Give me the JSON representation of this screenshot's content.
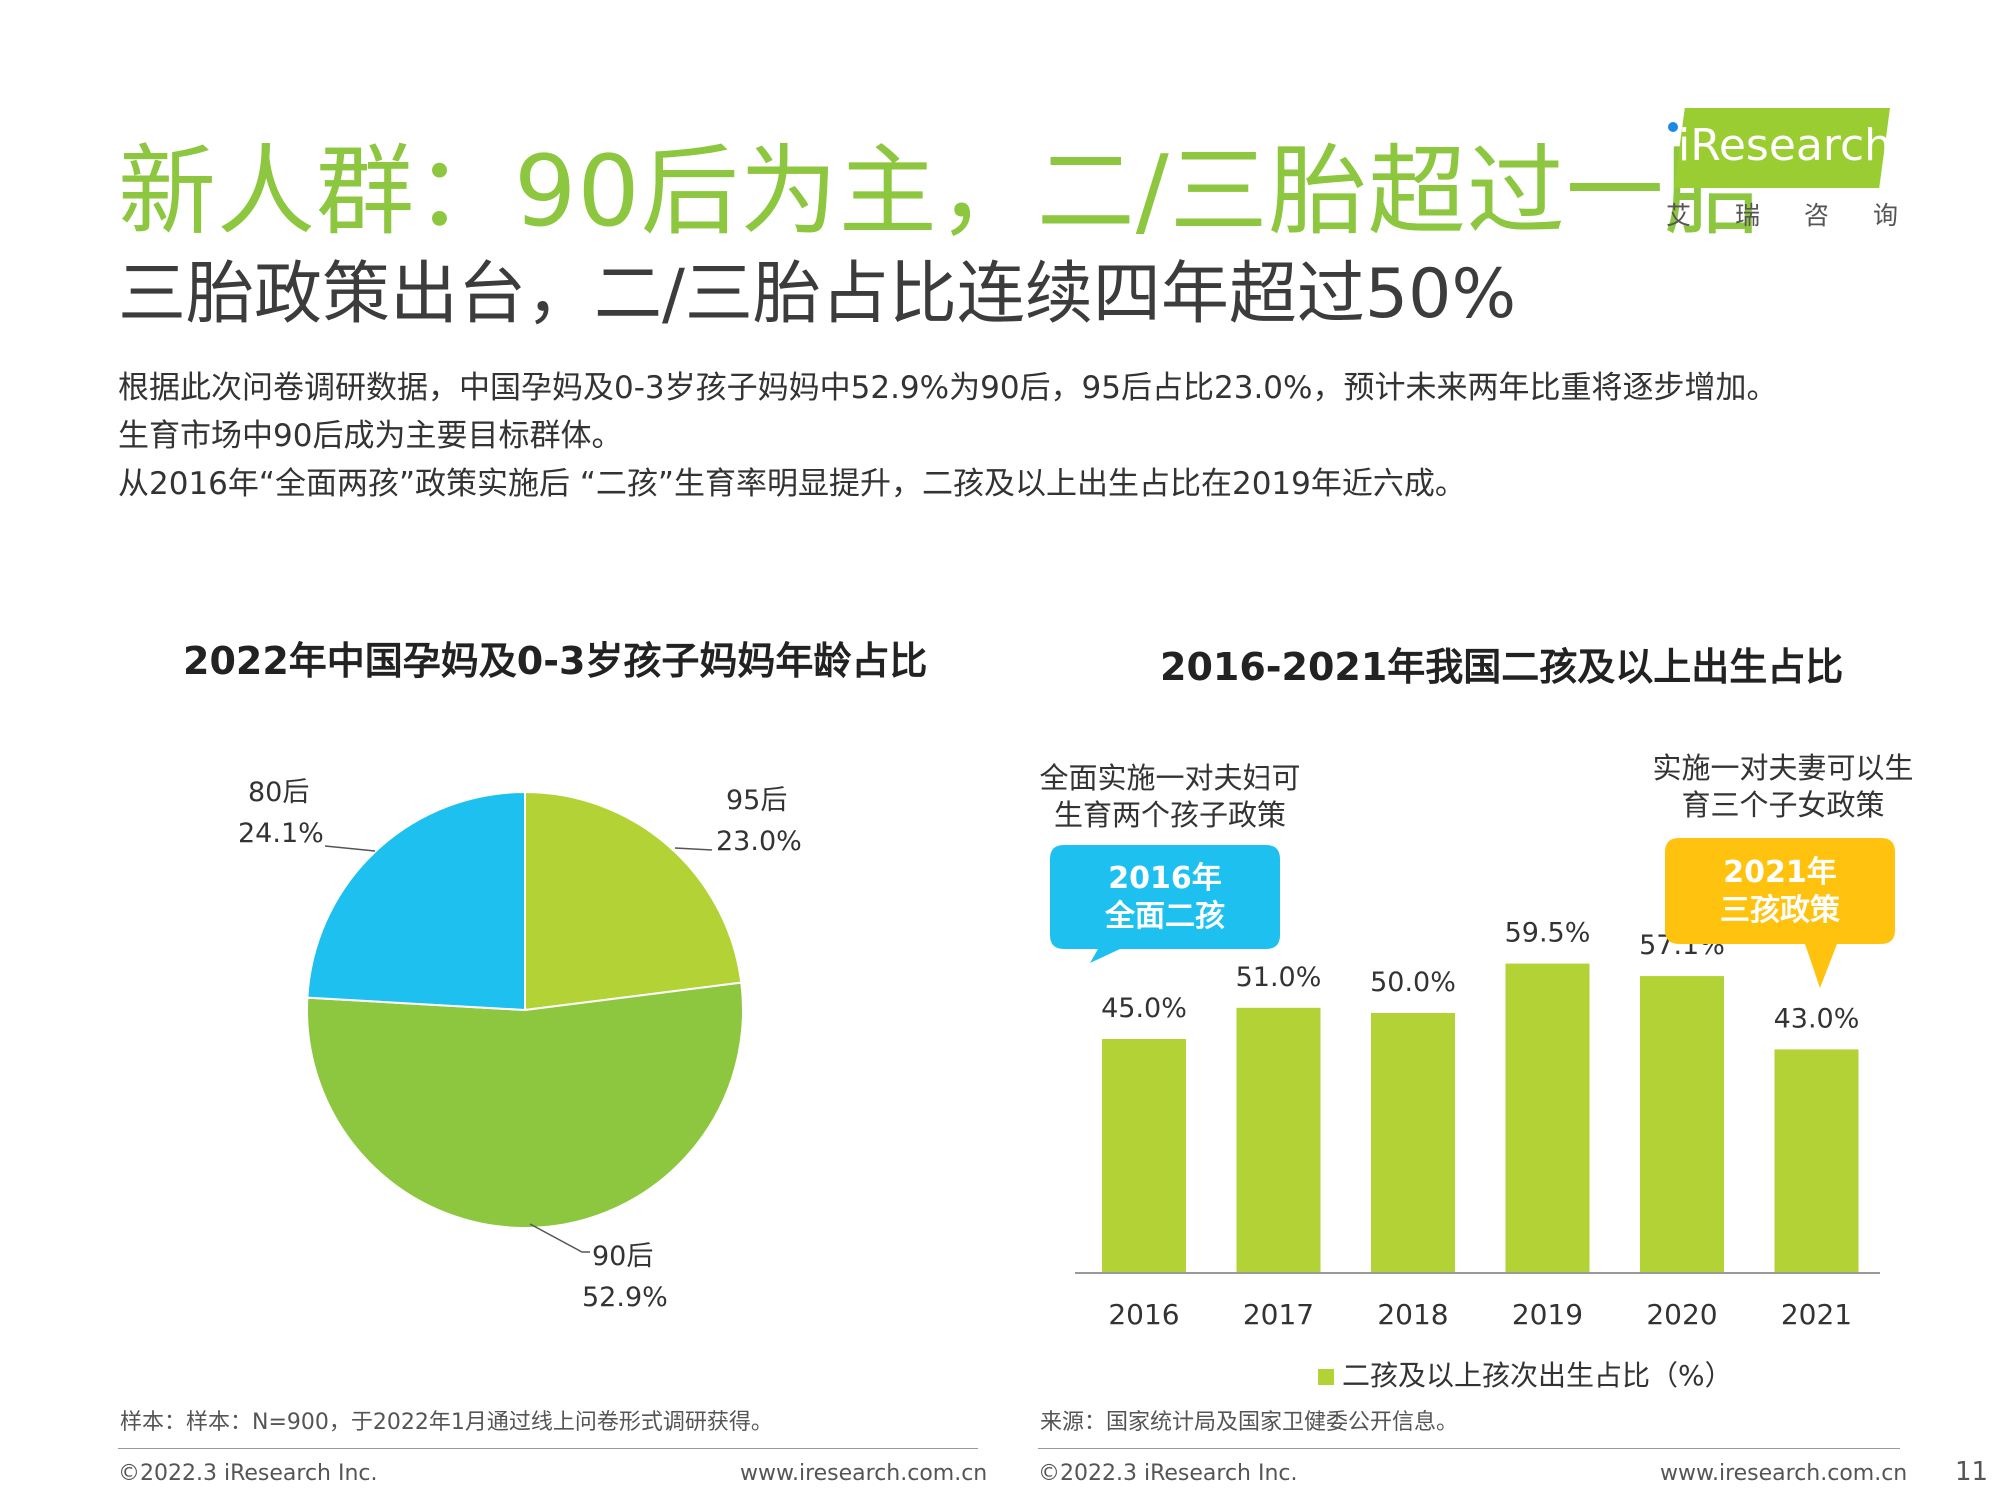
{
  "header": {
    "title": "新人群：90后为主，二/三胎超过一胎",
    "subtitle": "三胎政策出台，二/三胎占比连续四年超过50%",
    "paragraphs": [
      "根据此次问卷调研数据，中国孕妈及0-3岁孩子妈妈中52.9%为90后，95后占比23.0%，预计未来两年比重将逐步增加。",
      "生育市场中90后成为主要目标群体。",
      "从2016年“全面两孩”政策实施后 “二孩”生育率明显提升，二孩及以上出生占比在2019年近六成。"
    ]
  },
  "logo": {
    "brand": "iResearch",
    "cn": "艾瑞咨询"
  },
  "chart_data": [
    {
      "type": "pie",
      "title": "2022年中国孕妈及0-3岁孩子妈妈年龄占比",
      "slices": [
        {
          "label": "95后",
          "value": 23.0,
          "value_label": "23.0%",
          "color": "#b2d235"
        },
        {
          "label": "90后",
          "value": 52.9,
          "value_label": "52.9%",
          "color": "#8dc63f"
        },
        {
          "label": "80后",
          "value": 24.1,
          "value_label": "24.1%",
          "color": "#1ec0f0"
        }
      ]
    },
    {
      "type": "bar",
      "title": "2016-2021年我国二孩及以上出生占比",
      "categories": [
        "2016",
        "2017",
        "2018",
        "2019",
        "2020",
        "2021"
      ],
      "series": [
        {
          "name": "二孩及以上孩次出生占比（%）",
          "values": [
            45.0,
            51.0,
            50.0,
            59.5,
            57.1,
            43.0
          ],
          "value_labels": [
            "45.0%",
            "51.0%",
            "50.0%",
            "59.5%",
            "57.1%",
            "43.0%"
          ]
        }
      ],
      "ylim": [
        0,
        80
      ],
      "color": "#b2d235",
      "annotations": [
        {
          "text": [
            "全面实施一对夫妇可",
            "生育两个孩子政策"
          ],
          "bubble": [
            "2016年",
            "全面二孩"
          ],
          "color": "#1ec0f0"
        },
        {
          "text": [
            "实施一对夫妻可以生",
            "育三个子女政策"
          ],
          "bubble": [
            "2021年",
            "三孩政策"
          ],
          "color": "#ffc20e"
        }
      ]
    }
  ],
  "notes": {
    "left": "样本：样本：N=900，于2022年1月通过线上问卷形式调研获得。",
    "right": "来源：国家统计局及国家卫健委公开信息。"
  },
  "footer": {
    "copyright": "©2022.3 iResearch Inc.",
    "url": "www.iresearch.com.cn",
    "page": "11"
  }
}
